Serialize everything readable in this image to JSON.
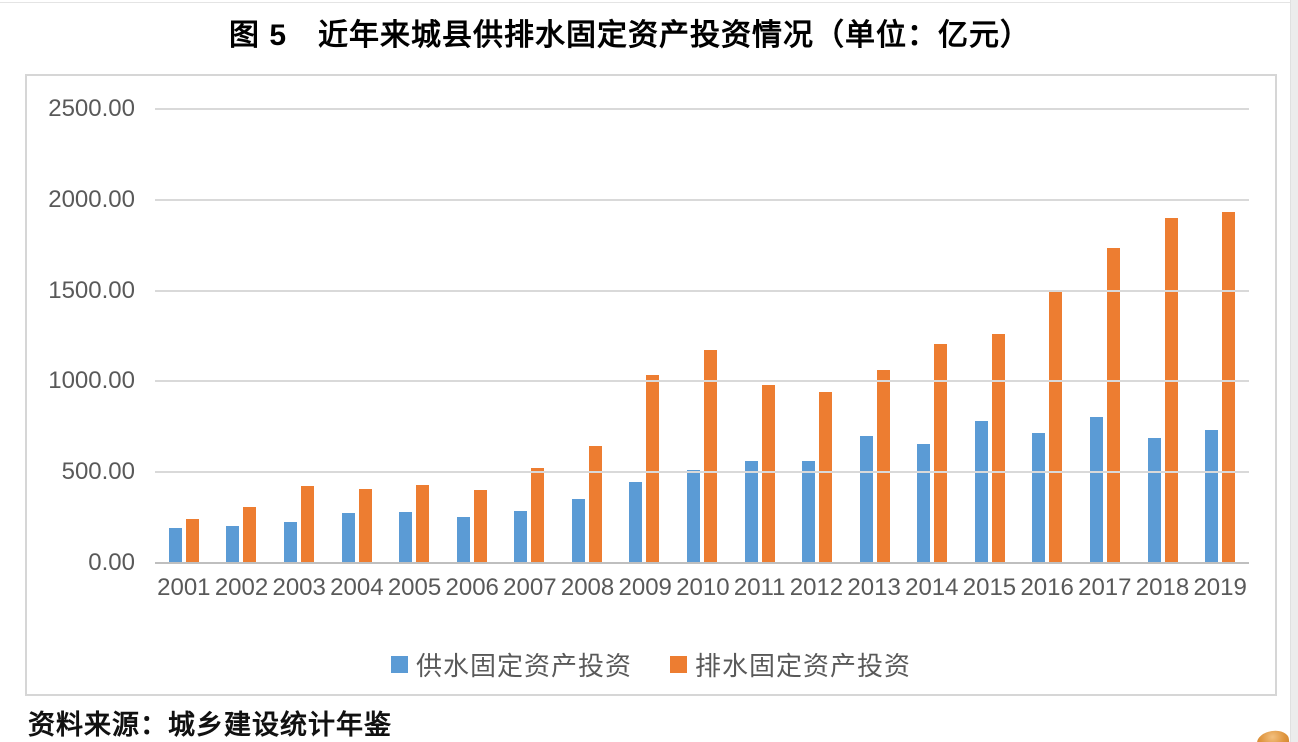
{
  "title": "图 5　近年来城县供排水固定资产投资情况（单位：亿元）",
  "source_note": "资料来源：城乡建设统计年鉴",
  "colors": {
    "supply": "#5B9BD5",
    "drainage": "#ED7D31",
    "axis_text": "#595959",
    "gridline": "#D9D9D9",
    "axis_line": "#BFBFBF",
    "chart_border": "#D6D6D6"
  },
  "legend": [
    {
      "label": "供水固定资产投资",
      "color": "#5B9BD5"
    },
    {
      "label": "排水固定资产投资",
      "color": "#ED7D31"
    }
  ],
  "chart_data": {
    "type": "bar",
    "title": "图 5　近年来城县供排水固定资产投资情况（单位：亿元）",
    "unit": "亿元",
    "categories": [
      "2001",
      "2002",
      "2003",
      "2004",
      "2005",
      "2006",
      "2007",
      "2008",
      "2009",
      "2010",
      "2011",
      "2012",
      "2013",
      "2014",
      "2015",
      "2016",
      "2017",
      "2018",
      "2019"
    ],
    "series": [
      {
        "name": "供水固定资产投资",
        "color": "#5B9BD5",
        "values": [
          190,
          198,
          220,
          268,
          278,
          249,
          279,
          345,
          442,
          507,
          558,
          554,
          694,
          652,
          778,
          708,
          801,
          684,
          725
        ]
      },
      {
        "name": "排水固定资产投资",
        "color": "#ED7D31",
        "values": [
          239,
          301,
          416,
          401,
          426,
          399,
          517,
          638,
          1031,
          1169,
          973,
          936,
          1058,
          1201,
          1253,
          1486,
          1729,
          1892,
          1926
        ]
      }
    ],
    "ylim": [
      0,
      2500
    ],
    "ytick_step": 500,
    "ytick_labels": [
      "0.00",
      "500.00",
      "1000.00",
      "1500.00",
      "2000.00",
      "2500.00"
    ],
    "grid": true,
    "legend_position": "bottom"
  }
}
